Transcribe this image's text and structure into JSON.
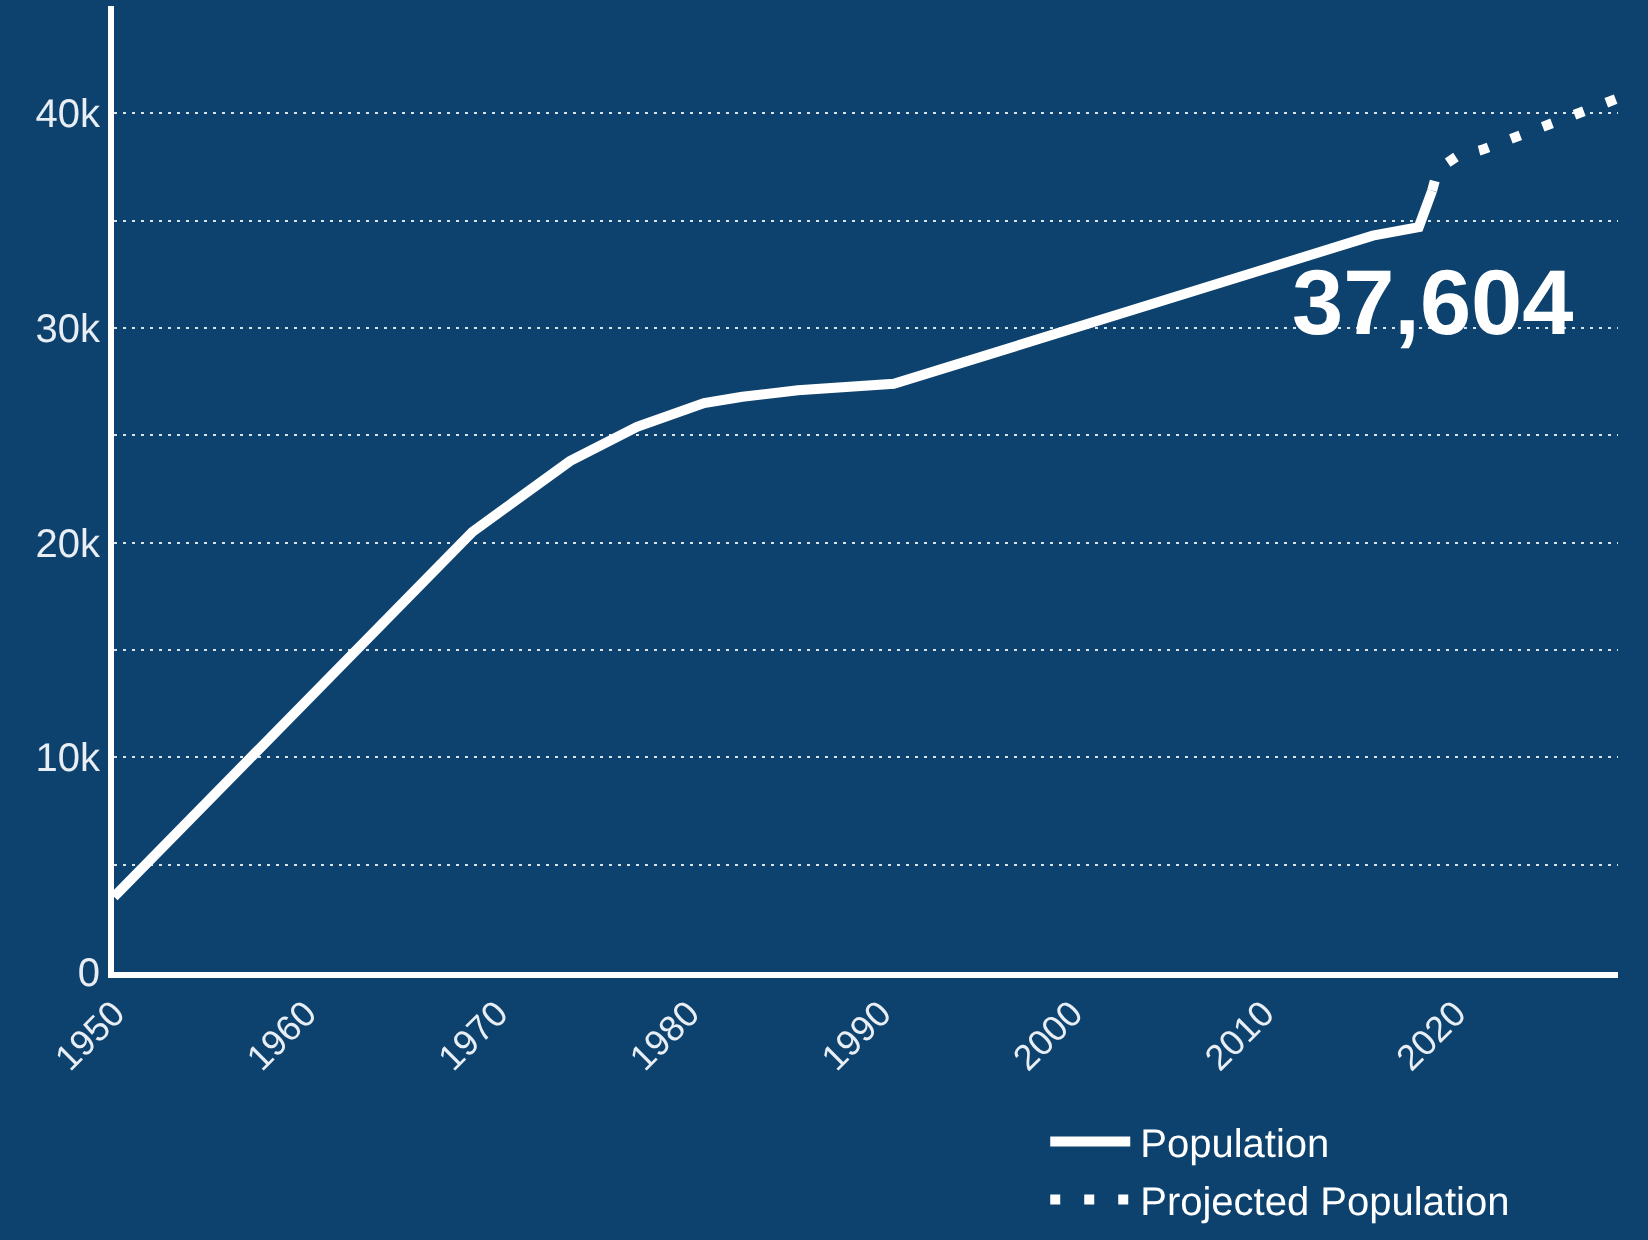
{
  "chart_data": {
    "type": "line",
    "series": [
      {
        "name": "Population",
        "color": "#ffffff",
        "line_style": "solid",
        "x": [
          1950,
          1968.7,
          1973.8,
          1977.3,
          1980.8,
          1982.8,
          1985.7,
          1990.7,
          2015.7,
          2018.1,
          2018.8
        ],
        "values": [
          3500,
          20500,
          23800,
          25400,
          26500,
          26800,
          27100,
          27400,
          34300,
          34700,
          36400
        ]
      },
      {
        "name": "Projected Population",
        "color": "#ffffff",
        "line_style": "dotted",
        "x": [
          2018.8,
          2019.1,
          2020.1,
          2021.4,
          2028.5
        ],
        "values": [
          36400,
          37400,
          38000,
          38300,
          40700
        ]
      }
    ],
    "xlim": [
      1950,
      2028.5
    ],
    "xticks": [
      1950,
      1960,
      1970,
      1980,
      1990,
      2000,
      2010,
      2020
    ],
    "ylim": [
      0,
      45000
    ],
    "yticks": [
      0,
      {
        "value": 5000,
        "label": null
      },
      {
        "value": 10000,
        "label": "10k"
      },
      {
        "value": 15000,
        "label": null
      },
      {
        "value": 20000,
        "label": "20k"
      },
      {
        "value": 25000,
        "label": null
      },
      {
        "value": 30000,
        "label": "30k"
      },
      {
        "value": 35000,
        "label": null
      },
      {
        "value": 40000,
        "label": "40k"
      }
    ],
    "grid": "y",
    "legend": "bottom right",
    "annotations": [
      "37,604"
    ]
  }
}
